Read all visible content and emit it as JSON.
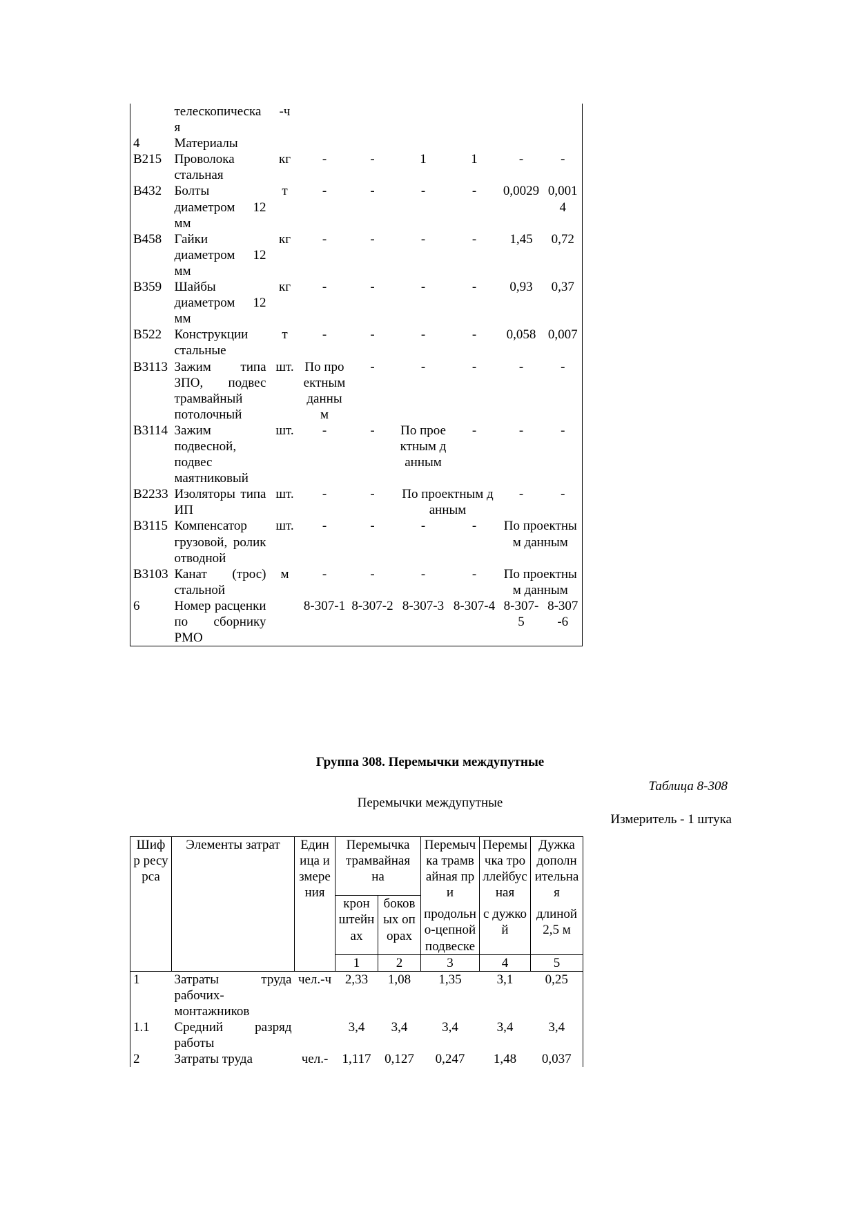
{
  "table1": {
    "rows": [
      [
        "телескопическая",
        "-ч"
      ],
      [
        "4",
        "Материалы"
      ],
      [
        "В215",
        "Проволока стальная",
        "кг",
        "-",
        "-",
        "1",
        "1",
        "-",
        "-"
      ],
      [
        "В432",
        "Болты диаметром 12 мм",
        "т",
        "-",
        "-",
        "-",
        "-",
        "0,0029",
        "0,0014"
      ],
      [
        "В458",
        "Гайки диаметром 12 мм",
        "кг",
        "-",
        "-",
        "-",
        "-",
        "1,45",
        "0,72"
      ],
      [
        "В359",
        "Шайбы диаметром 12 мм",
        "кг",
        "-",
        "-",
        "-",
        "-",
        "0,93",
        "0,37"
      ],
      [
        "В522",
        "Конструкции стальные",
        "т",
        "-",
        "-",
        "-",
        "-",
        "0,058",
        "0,007"
      ],
      [
        "В3113",
        "Зажим типа ЗПО, подвес трамвайный потолочный",
        "шт.",
        "По проектным данным",
        "-",
        "-",
        "-",
        "-",
        "-"
      ],
      [
        "В3114",
        "Зажим подвесной, подвес маятниковый",
        "шт.",
        "-",
        "-",
        "По проектным данным",
        "-",
        "-",
        "-"
      ],
      [
        "В2233",
        "Изоляторы типа ИП",
        "шт.",
        "-",
        "-",
        "По проектным данным",
        "-",
        "-"
      ],
      [
        "В3115",
        "Компенсатор грузовой, ролик отводной",
        "шт.",
        "-",
        "-",
        "-",
        "-",
        "По проектным данным"
      ],
      [
        "В3103",
        "Канат (трос) стальной",
        "м",
        "-",
        "-",
        "-",
        "-",
        "По проектным данным"
      ],
      [
        "6",
        "Номер расценки по сборнику РМО",
        "8-307-1",
        "8-307-2",
        "8-307-3",
        "8-307-4",
        "8-307-5",
        "8-307-6"
      ]
    ]
  },
  "section": {
    "title": "Группа 308. Перемычки междупутные",
    "table_number": "Таблица 8-308",
    "subtitle": "Перемычки междупутные",
    "measure": "Измеритель - 1 штука"
  },
  "table2": {
    "header": {
      "code": "Шифр ресурса",
      "elements": "Элементы затрат",
      "unit": "Единица измерения",
      "col1_2": "Перемычка трамвайная на",
      "col1": "кронштейнах",
      "col2": "боковых опорах",
      "col3": [
        "Перемычка трамвайная при",
        "продольно-цепной подвеске"
      ],
      "col4": [
        "Перемычка троллейбусная",
        "с дужкой"
      ],
      "col5": [
        "Дужка дополнительная",
        "длиной 2,5 м"
      ],
      "numbers": [
        "1",
        "2",
        "3",
        "4",
        "5"
      ]
    },
    "rows": [
      [
        "1",
        "Затраты труда рабочих-монтажников",
        "чел.-ч",
        "2,33",
        "1,08",
        "1,35",
        "3,1",
        "0,25"
      ],
      [
        "1.1",
        "Средний разряд работы",
        "3,4",
        "3,4",
        "3,4",
        "3,4",
        "3,4"
      ],
      [
        "2",
        "Затраты труда",
        "чел.-",
        "1,117",
        "0,127",
        "0,247",
        "1,48",
        "0,037"
      ]
    ]
  }
}
